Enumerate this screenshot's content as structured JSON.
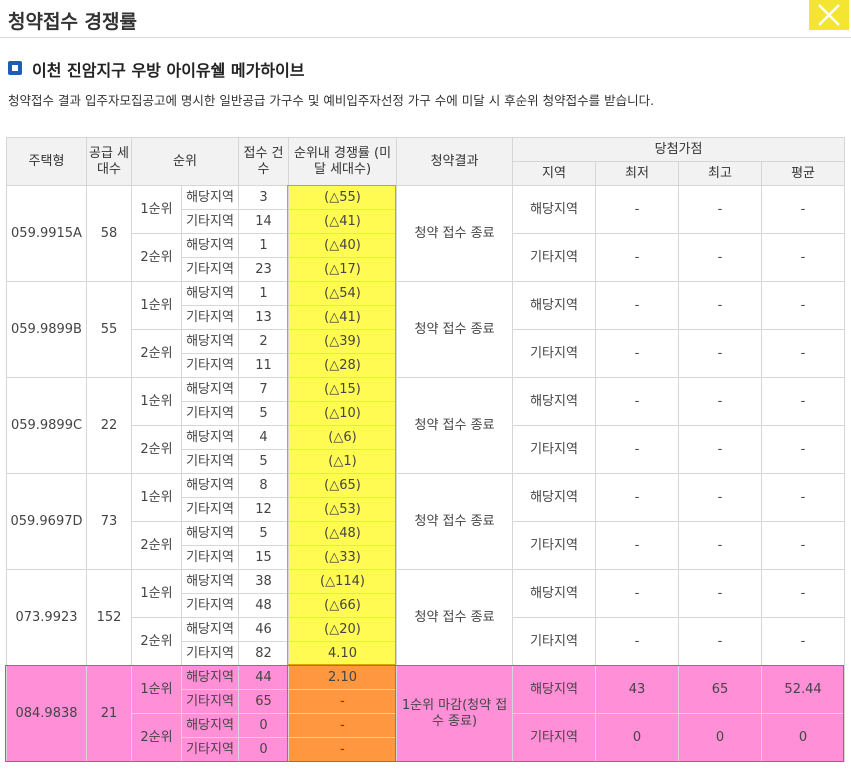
{
  "window": {
    "title": "청약접수 경쟁률"
  },
  "section": {
    "title": "이천 진암지구 우방 아이유쉘 메가하이브"
  },
  "notice": "청약접수 결과 입주자모집공고에 명시한 일반공급 가구수 및 예비입주자선정 가구 수에 미달 시 후순위 청약접수를 받습니다.",
  "headers": {
    "house_type": "주택형",
    "supply": "공급 세대수",
    "rank": "순위",
    "applications": "접수 건수",
    "rate": "순위내 경쟁률 (미달 세대수)",
    "result": "청약결과",
    "winning_score": "당첨가점",
    "region": "지역",
    "min": "최저",
    "max": "최고",
    "avg": "평균"
  },
  "colors": {
    "highlight_yellow": "#fffb53",
    "highlight_orange": "#ff9640",
    "highlight_pink": "#ff8fd6",
    "close_button": "#f5e533"
  },
  "groups": [
    {
      "type": "059.9915A",
      "supply": "58",
      "result": "청약 접수 종료",
      "ranks": [
        {
          "label": "1순위",
          "rows": [
            {
              "area": "해당지역",
              "count": "3",
              "rate": "(△55)"
            },
            {
              "area": "기타지역",
              "count": "14",
              "rate": "(△41)"
            }
          ]
        },
        {
          "label": "2순위",
          "rows": [
            {
              "area": "해당지역",
              "count": "1",
              "rate": "(△40)"
            },
            {
              "area": "기타지역",
              "count": "23",
              "rate": "(△17)"
            }
          ]
        }
      ],
      "scores": [
        {
          "region": "해당지역",
          "min": "-",
          "max": "-",
          "avg": "-"
        },
        {
          "region": "기타지역",
          "min": "-",
          "max": "-",
          "avg": "-"
        }
      ]
    },
    {
      "type": "059.9899B",
      "supply": "55",
      "result": "청약 접수 종료",
      "ranks": [
        {
          "label": "1순위",
          "rows": [
            {
              "area": "해당지역",
              "count": "1",
              "rate": "(△54)"
            },
            {
              "area": "기타지역",
              "count": "13",
              "rate": "(△41)"
            }
          ]
        },
        {
          "label": "2순위",
          "rows": [
            {
              "area": "해당지역",
              "count": "2",
              "rate": "(△39)"
            },
            {
              "area": "기타지역",
              "count": "11",
              "rate": "(△28)"
            }
          ]
        }
      ],
      "scores": [
        {
          "region": "해당지역",
          "min": "-",
          "max": "-",
          "avg": "-"
        },
        {
          "region": "기타지역",
          "min": "-",
          "max": "-",
          "avg": "-"
        }
      ]
    },
    {
      "type": "059.9899C",
      "supply": "22",
      "result": "청약 접수 종료",
      "ranks": [
        {
          "label": "1순위",
          "rows": [
            {
              "area": "해당지역",
              "count": "7",
              "rate": "(△15)"
            },
            {
              "area": "기타지역",
              "count": "5",
              "rate": "(△10)"
            }
          ]
        },
        {
          "label": "2순위",
          "rows": [
            {
              "area": "해당지역",
              "count": "4",
              "rate": "(△6)"
            },
            {
              "area": "기타지역",
              "count": "5",
              "rate": "(△1)"
            }
          ]
        }
      ],
      "scores": [
        {
          "region": "해당지역",
          "min": "-",
          "max": "-",
          "avg": "-"
        },
        {
          "region": "기타지역",
          "min": "-",
          "max": "-",
          "avg": "-"
        }
      ]
    },
    {
      "type": "059.9697D",
      "supply": "73",
      "result": "청약 접수 종료",
      "ranks": [
        {
          "label": "1순위",
          "rows": [
            {
              "area": "해당지역",
              "count": "8",
              "rate": "(△65)"
            },
            {
              "area": "기타지역",
              "count": "12",
              "rate": "(△53)"
            }
          ]
        },
        {
          "label": "2순위",
          "rows": [
            {
              "area": "해당지역",
              "count": "5",
              "rate": "(△48)"
            },
            {
              "area": "기타지역",
              "count": "15",
              "rate": "(△33)"
            }
          ]
        }
      ],
      "scores": [
        {
          "region": "해당지역",
          "min": "-",
          "max": "-",
          "avg": "-"
        },
        {
          "region": "기타지역",
          "min": "-",
          "max": "-",
          "avg": "-"
        }
      ]
    },
    {
      "type": "073.9923",
      "supply": "152",
      "result": "청약 접수 종료",
      "ranks": [
        {
          "label": "1순위",
          "rows": [
            {
              "area": "해당지역",
              "count": "38",
              "rate": "(△114)"
            },
            {
              "area": "기타지역",
              "count": "48",
              "rate": "(△66)"
            }
          ]
        },
        {
          "label": "2순위",
          "rows": [
            {
              "area": "해당지역",
              "count": "46",
              "rate": "(△20)"
            },
            {
              "area": "기타지역",
              "count": "82",
              "rate": "4.10"
            }
          ]
        }
      ],
      "scores": [
        {
          "region": "해당지역",
          "min": "-",
          "max": "-",
          "avg": "-"
        },
        {
          "region": "기타지역",
          "min": "-",
          "max": "-",
          "avg": "-"
        }
      ]
    },
    {
      "type": "084.9838",
      "supply": "21",
      "result": "1순위 마감(청약 접수 종료)",
      "highlight": true,
      "ranks": [
        {
          "label": "1순위",
          "rows": [
            {
              "area": "해당지역",
              "count": "44",
              "rate": "2.10"
            },
            {
              "area": "기타지역",
              "count": "65",
              "rate": "-"
            }
          ]
        },
        {
          "label": "2순위",
          "rows": [
            {
              "area": "해당지역",
              "count": "0",
              "rate": "-"
            },
            {
              "area": "기타지역",
              "count": "0",
              "rate": "-"
            }
          ]
        }
      ],
      "scores": [
        {
          "region": "해당지역",
          "min": "43",
          "max": "65",
          "avg": "52.44"
        },
        {
          "region": "기타지역",
          "min": "0",
          "max": "0",
          "avg": "0"
        }
      ]
    }
  ]
}
